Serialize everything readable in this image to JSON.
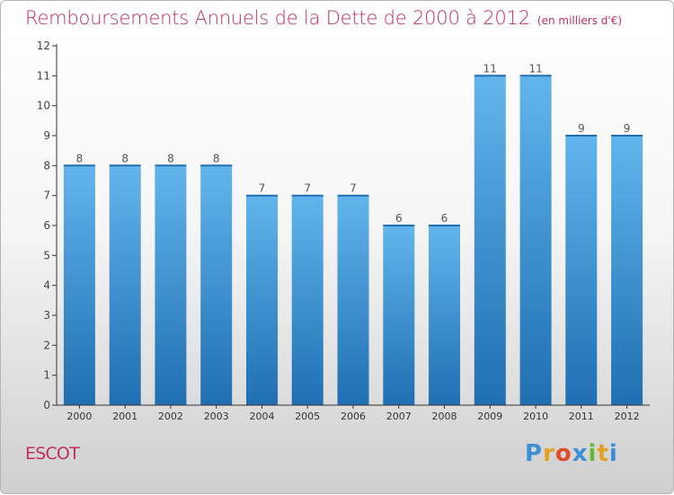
{
  "title": "Remboursements Annuels de la Dette de 2000 à 2012",
  "unit_note": "(en milliers d'€)",
  "commune": "ESCOT",
  "brand": {
    "letters": [
      "P",
      "r",
      "o",
      "x",
      "i",
      "t",
      "i"
    ],
    "colors": [
      "#3a8fd6",
      "#e2a11f",
      "#e14c2b",
      "#3a8fd6",
      "#64b832",
      "#e2a11f",
      "#3a8fd6"
    ]
  },
  "colors": {
    "bar_light": "#62b5ec",
    "bar_dark": "#1f6fb2",
    "title": "#c0305e",
    "axis": "#333333"
  },
  "chart_data": {
    "type": "bar",
    "categories": [
      "2000",
      "2001",
      "2002",
      "2003",
      "2004",
      "2005",
      "2006",
      "2007",
      "2008",
      "2009",
      "2010",
      "2011",
      "2012"
    ],
    "values": [
      8,
      8,
      8,
      8,
      7,
      7,
      7,
      6,
      6,
      11,
      11,
      9,
      9
    ],
    "data_labels": [
      "8",
      "8",
      "8",
      "8",
      "7",
      "7",
      "7",
      "6",
      "6",
      "11",
      "11",
      "9",
      "9"
    ],
    "yticks": [
      "0",
      "1",
      "2",
      "3",
      "4",
      "5",
      "6",
      "7",
      "8",
      "9",
      "10",
      "11",
      "12"
    ],
    "ylim": [
      0,
      12
    ],
    "grid": false,
    "legend": "none"
  }
}
